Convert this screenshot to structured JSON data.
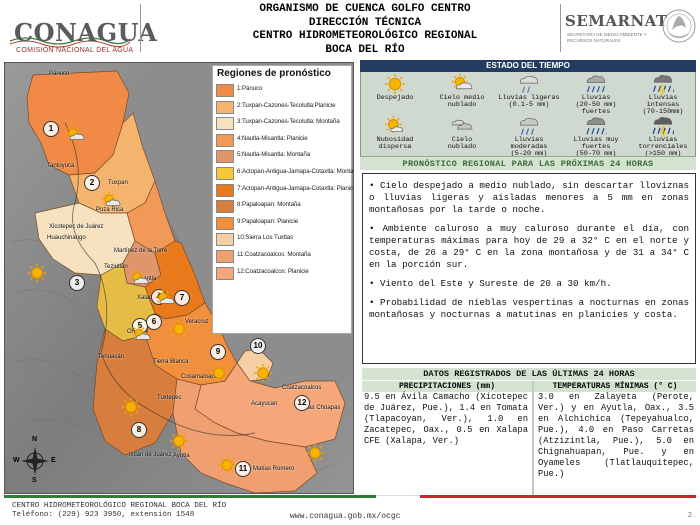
{
  "header": {
    "logo_left": "CONAGUA",
    "logo_left_sub": "COMISIÓN NACIONAL DEL AGUA",
    "lines": [
      "ORGANISMO DE CUENCA GOLFO CENTRO",
      "DIRECCIÓN TÉCNICA",
      "CENTRO HIDROMETEOROLÓGICO REGIONAL",
      "BOCA DEL RÍO"
    ],
    "logo_right": "SEMARNAT",
    "logo_right_sub": "SECRETARÍA DE MEDIO AMBIENTE Y RECURSOS NATURALES"
  },
  "map": {
    "legend_title": "Regiones de pronóstico",
    "regions": [
      {
        "label": "1:Pánuco",
        "color": "#f08a46"
      },
      {
        "label": "2:Tuxpan-Cazones-Tecolutla:Planicie",
        "color": "#f5b46d"
      },
      {
        "label": "3:Tuxpan-Cazones-Tecolutla: Montaña",
        "color": "#f7e2bf"
      },
      {
        "label": "4:Nautla-Misantla: Planicie",
        "color": "#f19a57"
      },
      {
        "label": "5:Nautla-Misantla: Montaña",
        "color": "#e0956a"
      },
      {
        "label": "6:Actopan-Antigua-Jamapa-Cotaxtla: Montaña",
        "color": "#f7c73b"
      },
      {
        "label": "7:Actopan-Antigua-Jamapa-Cotaxtla: Planicie",
        "color": "#e87a1c"
      },
      {
        "label": "8:Papaloapan: Montaña",
        "color": "#d77e3e"
      },
      {
        "label": "9:Papaloapan: Planicie",
        "color": "#f28f3d"
      },
      {
        "label": "10:Sierra Los Tuxtlas",
        "color": "#f3cfa3"
      },
      {
        "label": "11:Coatzacoalcos: Montaña",
        "color": "#f0a070"
      },
      {
        "label": "12:Coatzacoalcos: Planicie",
        "color": "#f5a77a"
      }
    ],
    "places": [
      "Pánuco",
      "Tantoyuca",
      "Tuxpan",
      "Poza Rica",
      "Xicotepec de Juárez",
      "Huauchinango",
      "Martínez de la Torre",
      "Teziutlán",
      "Misantla",
      "Xalapa",
      "Veracruz",
      "Orizaba",
      "Tehuacán",
      "Tierra Blanca",
      "Cosamaloapan",
      "Tuxtepec",
      "Acayucan",
      "Coatzacoalcos",
      "Las Choapas",
      "Ixtlán de Juárez",
      "Ayutla",
      "Matías Romero"
    ],
    "markers": [
      "1",
      "2",
      "3",
      "4",
      "5",
      "6",
      "7",
      "8",
      "9",
      "10",
      "11",
      "12"
    ],
    "compass": [
      "N",
      "S",
      "E",
      "W"
    ]
  },
  "estado": {
    "title": "ESTADO DEL TIEMPO",
    "items": [
      {
        "label": "Despejado",
        "icon": "sun-icon"
      },
      {
        "label": "Cielo medio\nnublado",
        "icon": "sun-cloud-icon"
      },
      {
        "label": "Lluvias ligeras\n(0.1-5 mm)",
        "icon": "light-rain-icon"
      },
      {
        "label": "Lluvias\n(20-50 mm)\nfuertes",
        "icon": "heavy-rain-icon"
      },
      {
        "label": "Lluvias\nintensas\n(70-150mm)",
        "icon": "intense-rain-icon"
      },
      {
        "label": "Nubosidad\ndispersa",
        "icon": "scattered-clouds-icon"
      },
      {
        "label": "Cielo\nnublado",
        "icon": "cloud-icon"
      },
      {
        "label": "Lluvias\nmoderadas\n(5-20 mm)",
        "icon": "moderate-rain-icon"
      },
      {
        "label": "Lluvias muy fuertes\n(50-70 mm)",
        "icon": "very-heavy-rain-icon"
      },
      {
        "label": "Lluvias\ntorrenciales\n(>150 mm)",
        "icon": "torrential-rain-icon"
      }
    ]
  },
  "regional": {
    "title": "PRONÓSTICO REGIONAL PARA LAS PRÓXIMAS 24 HORAS",
    "paragraphs": [
      "• Cielo despejado a medio nublado, sin descartar lloviznas o lluvias ligeras y aisladas menores a 5 mm en zonas montañosas por la tarde o noche.",
      "• Ambiente caluroso a muy caluroso durante el día, con temperaturas máximas para hoy de 29 a 32° C en el norte y costa, de 26 a 29° C en la zona montañosa y de 31 a 34° C en la porción sur.",
      "• Viento del Este y Sureste de 20 a 30 km/h.",
      "• Probabilidad de nieblas vespertinas a nocturnas en zonas montañosas y nocturnas a matutinas en planicies y costa."
    ]
  },
  "datos": {
    "title": "DATOS REGISTRADOS DE LAS ÚLTIMAS 24 HORAS",
    "precip_header": "PRECIPITACIONES (mm)",
    "precip_text": "9.5 en Ávila Camacho (Xicotepec de Juárez, Pue.), 1.4 en Tomata (Tlapacoyan, Ver.), 1.0 en Zacatepec, Oax., 0.5 en Xalapa CFE (Xalapa, Ver.)",
    "temp_header": "TEMPERATURAS MÍNIMAS (° C)",
    "temp_text": "3.0 en Zalayeta (Perote, Ver.) y en Ayutla, Oax., 3.5 en Alchichica (Tepeyahualco, Pue.), 4.0 en Paso Carretas (Atzizintla, Pue.), 5.0 en Chignahuapan, Pue. y en Oyameles (Tlatlauquitepec, Pue.)"
  },
  "footer": {
    "org": "CENTRO HIDROMETEOROLÓGICO REGIONAL BOCA DEL RÍO",
    "phone": "Teléfono: (229) 923 3950, extensión 1548",
    "url": "www.conagua.gob.mx/ocgc",
    "page": "2"
  },
  "chart_data": {
    "type": "table",
    "title": "DATOS REGISTRADOS DE LAS ÚLTIMAS 24 HORAS",
    "precipitation_mm": [
      {
        "station": "Ávila Camacho (Xicotepec de Juárez, Pue.)",
        "value": 9.5
      },
      {
        "station": "Tomata (Tlapacoyan, Ver.)",
        "value": 1.4
      },
      {
        "station": "Zacatepec, Oax.",
        "value": 1.0
      },
      {
        "station": "Xalapa CFE (Xalapa, Ver.)",
        "value": 0.5
      }
    ],
    "min_temperature_c": [
      {
        "station": "Zalayeta (Perote, Ver.)",
        "value": 3.0
      },
      {
        "station": "Ayutla, Oax.",
        "value": 3.0
      },
      {
        "station": "Alchichica (Tepeyahualco, Pue.)",
        "value": 3.5
      },
      {
        "station": "Paso Carretas (Atzizintla, Pue.)",
        "value": 4.0
      },
      {
        "station": "Chignahuapan, Pue.",
        "value": 5.0
      },
      {
        "station": "Oyameles (Tlatlauquitepec, Pue.)",
        "value": 5.0
      }
    ]
  }
}
